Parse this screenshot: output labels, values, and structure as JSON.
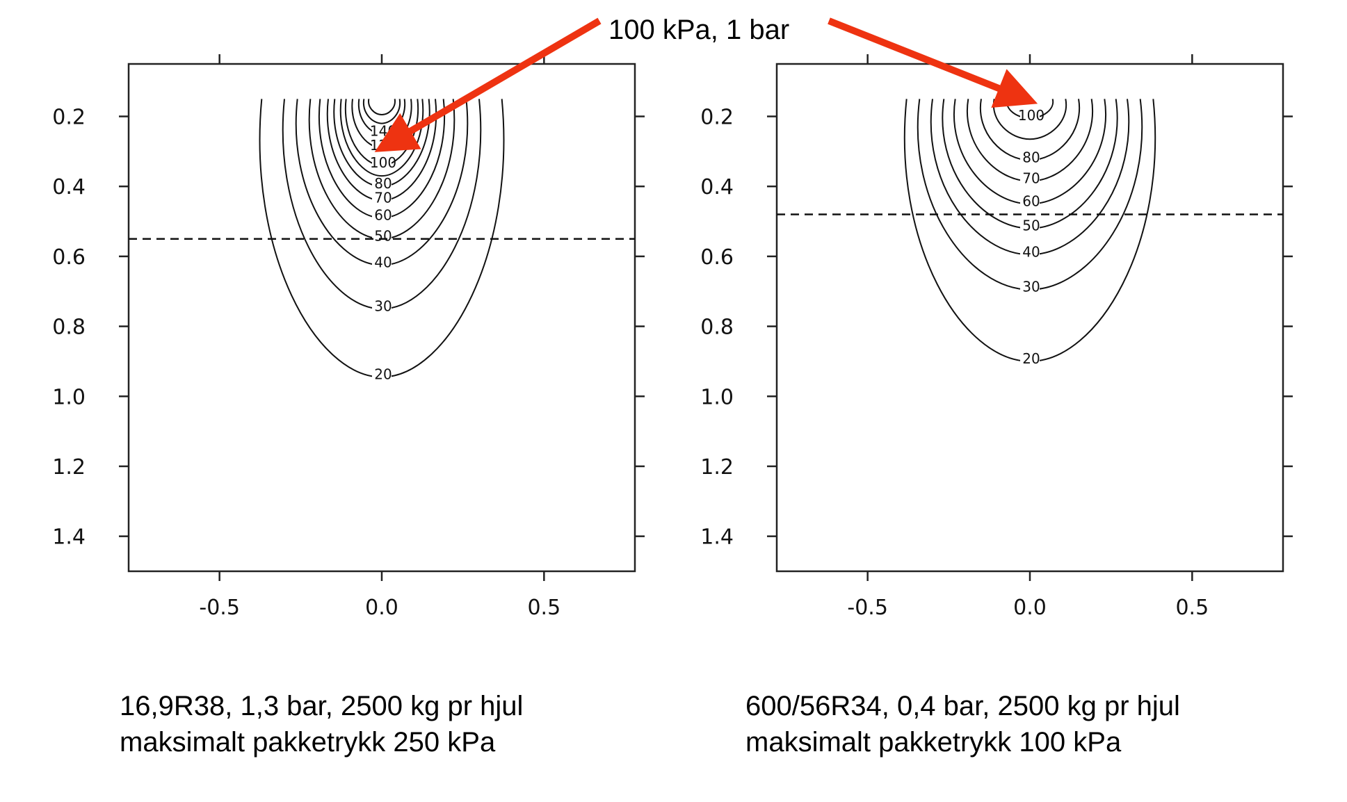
{
  "annotation": {
    "text": "100 kPa, 1 bar",
    "color": "#ee3311"
  },
  "chart_data": [
    {
      "type": "contour",
      "xlim": [
        -0.78,
        0.78
      ],
      "ylim": [
        0.05,
        1.5
      ],
      "y_inverted": true,
      "xticks": [
        -0.5,
        0.0,
        0.5
      ],
      "xtick_labels": [
        "-0.5",
        "0.0",
        "0.5"
      ],
      "yticks": [
        0.2,
        0.4,
        0.6,
        0.8,
        1.0,
        1.2,
        1.4
      ],
      "ytick_labels": [
        "0.2",
        "0.4",
        "0.6",
        "0.8",
        "1.0",
        "1.2",
        "1.4"
      ],
      "top_y": 0.15,
      "dashed_line_depth": 0.55,
      "contours": [
        {
          "level": 20,
          "label": "20",
          "half_width": 0.37,
          "depth": 0.945
        },
        {
          "level": 30,
          "label": "30",
          "half_width": 0.3,
          "depth": 0.75
        },
        {
          "level": 40,
          "label": "40",
          "half_width": 0.26,
          "depth": 0.625
        },
        {
          "level": 50,
          "label": "50",
          "half_width": 0.22,
          "depth": 0.55
        },
        {
          "level": 60,
          "label": "60",
          "half_width": 0.19,
          "depth": 0.49
        },
        {
          "level": 70,
          "label": "70",
          "half_width": 0.165,
          "depth": 0.44
        },
        {
          "level": 80,
          "label": "80",
          "half_width": 0.145,
          "depth": 0.4
        },
        {
          "level": 90,
          "label": "",
          "half_width": 0.125,
          "depth": 0.37
        },
        {
          "level": 100,
          "label": "100",
          "half_width": 0.11,
          "depth": 0.34
        },
        {
          "level": 120,
          "label": "120",
          "half_width": 0.09,
          "depth": 0.29
        },
        {
          "level": 140,
          "label": "140",
          "half_width": 0.07,
          "depth": 0.25
        },
        {
          "level": 160,
          "label": "",
          "half_width": 0.055,
          "depth": 0.22
        },
        {
          "level": 180,
          "label": "",
          "half_width": 0.04,
          "depth": 0.195
        }
      ],
      "caption": [
        "16,9R38, 1,3 bar, 2500 kg pr hjul",
        "maksimalt pakketrykk 250 kPa"
      ],
      "arrow_target": [
        0.0,
        0.29
      ]
    },
    {
      "type": "contour",
      "xlim": [
        -0.78,
        0.78
      ],
      "ylim": [
        0.05,
        1.5
      ],
      "y_inverted": true,
      "xticks": [
        -0.5,
        0.0,
        0.5
      ],
      "xtick_labels": [
        "-0.5",
        "0.0",
        "0.5"
      ],
      "yticks": [
        0.2,
        0.4,
        0.6,
        0.8,
        1.0,
        1.2,
        1.4
      ],
      "ytick_labels": [
        "0.2",
        "0.4",
        "0.6",
        "0.8",
        "1.0",
        "1.2",
        "1.4"
      ],
      "top_y": 0.15,
      "dashed_line_depth": 0.48,
      "contours": [
        {
          "level": 20,
          "label": "20",
          "half_width": 0.38,
          "depth": 0.9
        },
        {
          "level": 30,
          "label": "30",
          "half_width": 0.34,
          "depth": 0.695
        },
        {
          "level": 40,
          "label": "40",
          "half_width": 0.3,
          "depth": 0.595
        },
        {
          "level": 50,
          "label": "50",
          "half_width": 0.265,
          "depth": 0.52
        },
        {
          "level": 60,
          "label": "60",
          "half_width": 0.23,
          "depth": 0.45
        },
        {
          "level": 70,
          "label": "70",
          "half_width": 0.19,
          "depth": 0.385
        },
        {
          "level": 80,
          "label": "80",
          "half_width": 0.15,
          "depth": 0.325
        },
        {
          "level": 90,
          "label": "",
          "half_width": 0.11,
          "depth": 0.265
        },
        {
          "level": 100,
          "label": "100",
          "half_width": 0.07,
          "depth": 0.205
        }
      ],
      "caption": [
        "600/56R34, 0,4 bar, 2500 kg pr hjul",
        "maksimalt pakketrykk 100 kPa"
      ],
      "arrow_target": [
        0.0,
        0.155
      ]
    }
  ]
}
